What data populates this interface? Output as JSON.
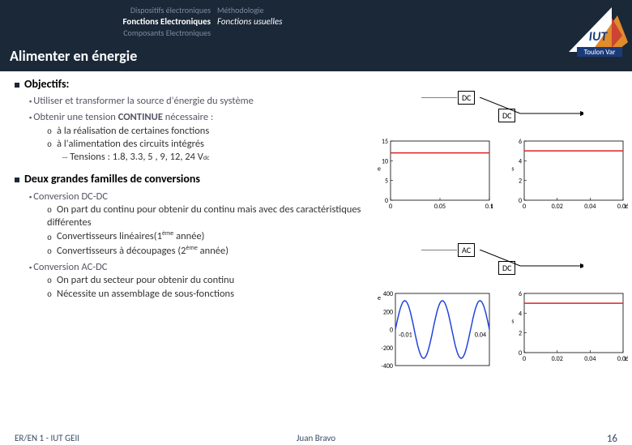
{
  "header": {
    "nav_left": {
      "l1": "Dispositifs électroniques",
      "l2": "Fonctions Electroniques",
      "l3": "Composants Electroniques"
    },
    "nav_right": {
      "l1": "Méthodologie",
      "l2": "Fonctions usuelles"
    },
    "title": "Alimenter en énergie",
    "logo_top": "IUT",
    "logo_bottom": "Toulon Var"
  },
  "content": {
    "objectifs": "Objectifs:",
    "obj1": "Utiliser et transformer la source d'énergie du système",
    "obj2_a": "Obtenir une tension ",
    "obj2_b": "CONTINUE",
    "obj2_c": " nécessaire :",
    "obj2_o1": "à la réalisation de certaines fonctions",
    "obj2_o2": "à l'alimentation des circuits intégrés",
    "obj2_d": "Tensions : 1.8, 3.3, 5 , 9, 12, 24 V",
    "obj2_d_sub": "dc",
    "familles": "Deux grandes familles de conversions",
    "dcdc": "Conversion DC-DC",
    "dcdc_o1": "On part du continu pour obtenir du continu mais avec des caractéristiques différentes",
    "dcdc_o2_a": "Convertisseurs linéaires(1",
    "dcdc_o2_b": "ème",
    "dcdc_o2_c": " année)",
    "dcdc_o3_a": "Convertisseurs à découpages (2",
    "dcdc_o3_b": "ème",
    "dcdc_o3_c": " année)",
    "acdc": "Conversion AC-DC",
    "acdc_o1": "On part du secteur pour obtenir du continu",
    "acdc_o2": "Nécessite un assemblage de sous-fonctions"
  },
  "boxes": {
    "dc": "DC",
    "ac": "AC"
  },
  "charts": {
    "dc_in": {
      "ylabel": "e",
      "yticks": [
        "15",
        "10",
        "5",
        "0"
      ],
      "xticks": [
        "0",
        "0.05",
        "0.1"
      ],
      "xend": "t",
      "yvalue": 12
    },
    "dc_out": {
      "ylabel": "s",
      "yticks": [
        "6",
        "4",
        "2",
        "0"
      ],
      "xticks": [
        "0",
        "0.02",
        "0.04",
        "0.06"
      ],
      "xend": "t",
      "yvalue": 5
    },
    "ac_in": {
      "ylabel": "e",
      "yticks": [
        "400",
        "200",
        "0",
        "-200",
        "-400"
      ],
      "xticks": [
        "-0.01",
        "0.04"
      ],
      "amplitude": 320,
      "cycles": 2.5
    },
    "ac_out": {
      "ylabel": "s",
      "yticks": [
        "6",
        "4",
        "2",
        "0"
      ],
      "xticks": [
        "0",
        "0.02",
        "0.04",
        "0.06"
      ],
      "xend": "t",
      "yvalue": 5
    }
  },
  "footer": {
    "left": "ER/EN 1 - IUT GEII",
    "center": "Juan Bravo",
    "page": "16"
  }
}
